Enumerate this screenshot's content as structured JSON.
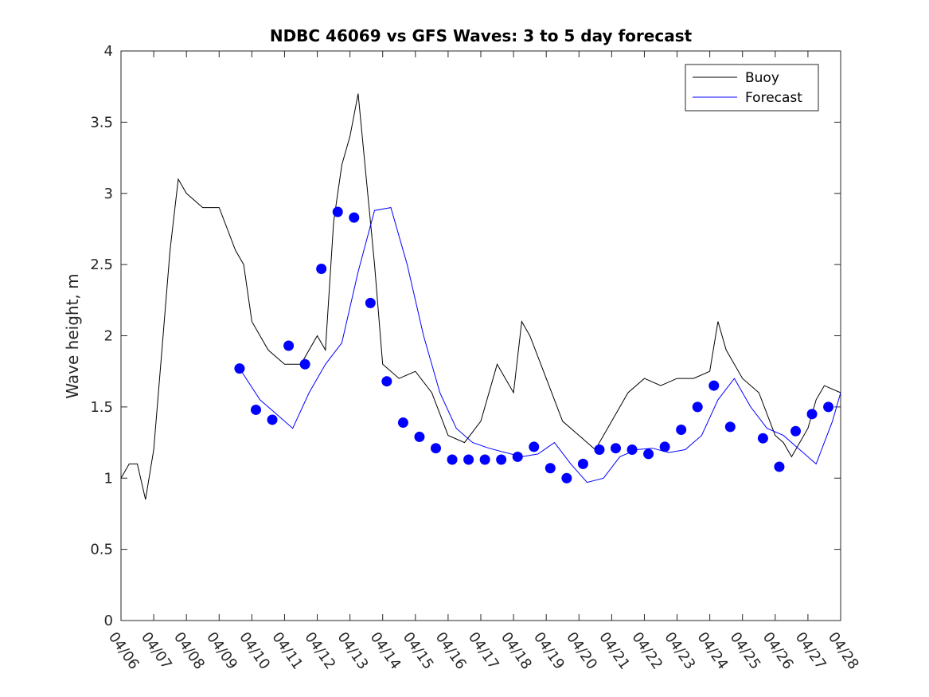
{
  "chart_data": {
    "type": "line",
    "title": "NDBC 46069 vs GFS Waves: 3 to 5 day forecast",
    "xlabel": "",
    "ylabel": "Wave height, m",
    "xlim": [
      "04/06",
      "04/28"
    ],
    "ylim": [
      0,
      4
    ],
    "x_tick_labels": [
      "04/06",
      "04/07",
      "04/08",
      "04/09",
      "04/10",
      "04/11",
      "04/12",
      "04/13",
      "04/14",
      "04/15",
      "04/16",
      "04/17",
      "04/18",
      "04/19",
      "04/20",
      "04/21",
      "04/22",
      "04/23",
      "04/24",
      "04/25",
      "04/26",
      "04/27",
      "04/28"
    ],
    "y_ticks": [
      0,
      0.5,
      1,
      1.5,
      2,
      2.5,
      3,
      3.5,
      4
    ],
    "grid": false,
    "legend": {
      "position": "top-right",
      "entries": [
        {
          "name": "Buoy",
          "color": "#000000"
        },
        {
          "name": "Forecast",
          "color": "#0000ff"
        }
      ]
    },
    "series": [
      {
        "name": "Buoy",
        "color": "#000000",
        "x": [
          "04/06 00:00",
          "04/06 06:00",
          "04/06 12:00",
          "04/06 18:00",
          "04/07 00:00",
          "04/07 06:00",
          "04/07 12:00",
          "04/07 18:00",
          "04/08 00:00",
          "04/08 12:00",
          "04/09 00:00",
          "04/09 12:00",
          "04/09 18:00",
          "04/10 00:00",
          "04/10 12:00",
          "04/11 00:00",
          "04/11 12:00",
          "04/12 00:00",
          "04/12 06:00",
          "04/12 12:00",
          "04/12 18:00",
          "04/13 00:00",
          "04/13 06:00",
          "04/13 12:00",
          "04/13 18:00",
          "04/14 00:00",
          "04/14 12:00",
          "04/15 00:00",
          "04/15 12:00",
          "04/16 00:00",
          "04/16 12:00",
          "04/17 00:00",
          "04/17 12:00",
          "04/18 00:00",
          "04/18 06:00",
          "04/18 12:00",
          "04/19 00:00",
          "04/19 12:00",
          "04/20 00:00",
          "04/20 12:00",
          "04/21 00:00",
          "04/21 12:00",
          "04/22 00:00",
          "04/22 12:00",
          "04/23 00:00",
          "04/23 12:00",
          "04/24 00:00",
          "04/24 06:00",
          "04/24 12:00",
          "04/25 00:00",
          "04/25 12:00",
          "04/26 00:00",
          "04/26 06:00",
          "04/26 12:00",
          "04/27 00:00",
          "04/27 06:00",
          "04/27 12:00",
          "04/28 00:00"
        ],
        "values": [
          1.0,
          1.1,
          1.1,
          0.85,
          1.2,
          1.9,
          2.6,
          3.1,
          3.0,
          2.9,
          2.9,
          2.6,
          2.5,
          2.1,
          1.9,
          1.8,
          1.8,
          2.0,
          1.9,
          2.8,
          3.2,
          3.4,
          3.7,
          3.1,
          2.5,
          1.8,
          1.7,
          1.75,
          1.6,
          1.3,
          1.25,
          1.4,
          1.8,
          1.6,
          2.1,
          2.0,
          1.7,
          1.4,
          1.3,
          1.2,
          1.4,
          1.6,
          1.7,
          1.65,
          1.7,
          1.7,
          1.75,
          2.1,
          1.9,
          1.7,
          1.6,
          1.3,
          1.25,
          1.15,
          1.35,
          1.55,
          1.65,
          1.6
        ]
      },
      {
        "name": "Forecast",
        "color": "#0000ff",
        "x": [
          "04/09 15:00",
          "04/10 06:00",
          "04/10 18:00",
          "04/11 06:00",
          "04/11 18:00",
          "04/12 06:00",
          "04/12 18:00",
          "04/13 06:00",
          "04/13 18:00",
          "04/14 06:00",
          "04/14 18:00",
          "04/15 06:00",
          "04/15 18:00",
          "04/16 06:00",
          "04/16 18:00",
          "04/17 06:00",
          "04/17 18:00",
          "04/18 06:00",
          "04/18 18:00",
          "04/19 06:00",
          "04/19 18:00",
          "04/20 06:00",
          "04/20 18:00",
          "04/21 06:00",
          "04/21 18:00",
          "04/22 06:00",
          "04/22 18:00",
          "04/23 06:00",
          "04/23 18:00",
          "04/24 06:00",
          "04/24 18:00",
          "04/25 06:00",
          "04/25 18:00",
          "04/26 06:00",
          "04/26 18:00",
          "04/27 06:00",
          "04/27 18:00",
          "04/28 00:00"
        ],
        "values": [
          1.77,
          1.55,
          1.45,
          1.35,
          1.6,
          1.8,
          1.95,
          2.45,
          2.88,
          2.9,
          2.5,
          2.0,
          1.6,
          1.35,
          1.25,
          1.21,
          1.18,
          1.15,
          1.17,
          1.25,
          1.1,
          0.97,
          1.0,
          1.15,
          1.2,
          1.21,
          1.18,
          1.2,
          1.3,
          1.55,
          1.7,
          1.5,
          1.35,
          1.3,
          1.2,
          1.1,
          1.4,
          1.6
        ]
      },
      {
        "name": "Forecast markers",
        "color": "#0000ff",
        "x": [
          "04/09 15:00",
          "04/10 03:00",
          "04/10 15:00",
          "04/11 03:00",
          "04/11 15:00",
          "04/12 03:00",
          "04/12 15:00",
          "04/13 03:00",
          "04/13 15:00",
          "04/14 03:00",
          "04/14 15:00",
          "04/15 03:00",
          "04/15 15:00",
          "04/16 03:00",
          "04/16 15:00",
          "04/17 03:00",
          "04/17 15:00",
          "04/18 03:00",
          "04/18 15:00",
          "04/19 03:00",
          "04/19 15:00",
          "04/20 03:00",
          "04/20 15:00",
          "04/21 03:00",
          "04/21 15:00",
          "04/22 03:00",
          "04/22 15:00",
          "04/23 03:00",
          "04/23 15:00",
          "04/24 03:00",
          "04/24 15:00",
          "04/25 15:00",
          "04/26 03:00",
          "04/26 15:00",
          "04/27 03:00",
          "04/27 15:00"
        ],
        "values": [
          1.77,
          1.48,
          1.41,
          1.93,
          1.8,
          2.47,
          2.87,
          2.83,
          2.23,
          1.68,
          1.39,
          1.29,
          1.21,
          1.13,
          1.13,
          1.13,
          1.13,
          1.15,
          1.22,
          1.07,
          1.0,
          1.1,
          1.2,
          1.21,
          1.2,
          1.17,
          1.22,
          1.34,
          1.5,
          1.65,
          1.36,
          1.28,
          1.08,
          1.33,
          1.45,
          1.5
        ]
      }
    ]
  }
}
